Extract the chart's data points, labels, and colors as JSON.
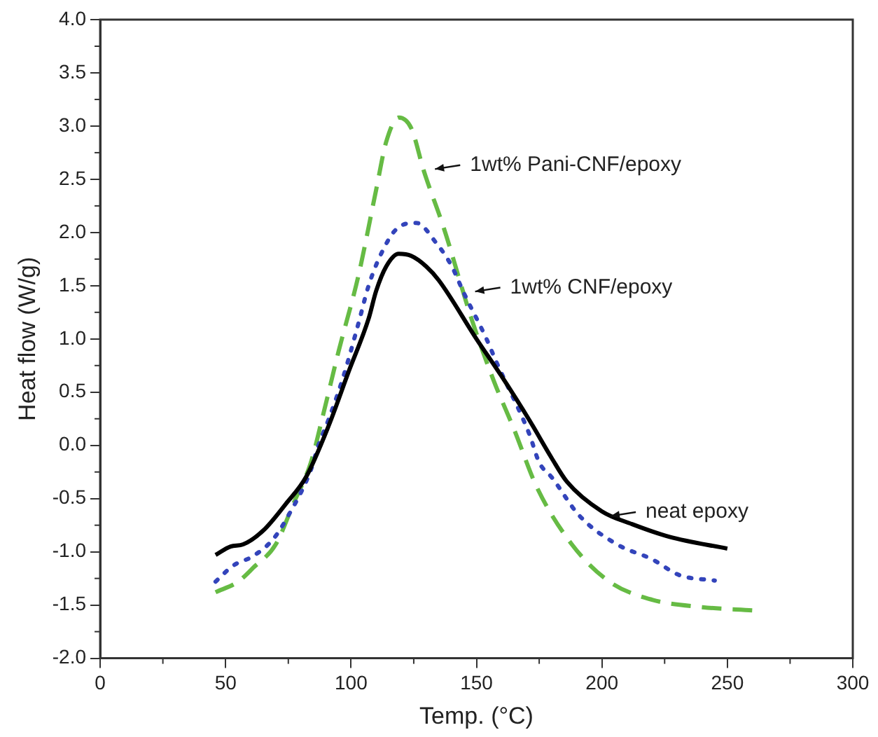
{
  "chart_data": {
    "type": "line",
    "xlabel": "Temp. (°C)",
    "ylabel": "Heat flow (W/g)",
    "xlim": [
      0,
      300
    ],
    "xticks": [
      0,
      50,
      100,
      150,
      200,
      250,
      300
    ],
    "ylim": [
      -2.0,
      4.0
    ],
    "yticks": [
      {
        "value": -2,
        "label": "-2.0"
      },
      {
        "value": -1.5,
        "label": "-1.5"
      },
      {
        "value": -1,
        "label": "-1.0"
      },
      {
        "value": -0.5,
        "label": "-0.5"
      },
      {
        "value": 0,
        "label": "0.0"
      },
      {
        "value": 0.5,
        "label": "0.5"
      },
      {
        "value": 1,
        "label": "1.0"
      },
      {
        "value": 1.5,
        "label": "1.5"
      },
      {
        "value": 2,
        "label": "2.0"
      },
      {
        "value": 2.5,
        "label": "2.5"
      },
      {
        "value": 3,
        "label": "3.0"
      },
      {
        "value": 3.5,
        "label": "3.5"
      },
      {
        "value": 4,
        "label": "4.0"
      }
    ],
    "grid": false,
    "legend": false,
    "marker": "none",
    "series": [
      {
        "color": "#000000",
        "line_style": "solid",
        "x": [
          46,
          52,
          57,
          65,
          74,
          82,
          91,
          99,
          107,
          110,
          114,
          119,
          124,
          130,
          135,
          150,
          160,
          171,
          180,
          186,
          200,
          212,
          227,
          250
        ],
        "values": [
          -1.03,
          -0.95,
          -0.93,
          -0.8,
          -0.55,
          -0.3,
          0.18,
          0.69,
          1.19,
          1.45,
          1.68,
          1.8,
          1.78,
          1.68,
          1.55,
          1.0,
          0.65,
          0.24,
          -0.12,
          -0.34,
          -0.62,
          -0.74,
          -0.86,
          -0.97
        ]
      },
      {
        "color": "#3344bb",
        "line_style": "dotted",
        "x": [
          46,
          53,
          61,
          69,
          75,
          84,
          87,
          91,
          97,
          103,
          107,
          112,
          118,
          126,
          134,
          140,
          145,
          154,
          158,
          171,
          175,
          180,
          191,
          206,
          220,
          231,
          245
        ],
        "values": [
          -1.28,
          -1.13,
          -1.04,
          -0.88,
          -0.66,
          -0.23,
          0.0,
          0.24,
          0.65,
          1.15,
          1.5,
          1.8,
          2.03,
          2.09,
          1.9,
          1.69,
          1.43,
          1.0,
          0.78,
          0.11,
          -0.16,
          -0.3,
          -0.66,
          -0.93,
          -1.07,
          -1.22,
          -1.27
        ]
      },
      {
        "color": "#66bb44",
        "line_style": "dashed",
        "x": [
          46,
          55,
          61,
          70,
          77,
          84,
          89,
          95,
          103,
          110,
          114,
          119,
          124,
          129,
          137,
          148,
          157,
          165,
          174,
          188,
          203,
          220,
          240,
          260
        ],
        "values": [
          -1.38,
          -1.28,
          -1.15,
          -0.93,
          -0.55,
          -0.16,
          0.3,
          0.88,
          1.6,
          2.4,
          2.85,
          3.08,
          2.98,
          2.58,
          2.04,
          1.19,
          0.6,
          0.15,
          -0.39,
          -0.93,
          -1.28,
          -1.45,
          -1.52,
          -1.55
        ]
      }
    ],
    "annotations": [
      {
        "text": "1wt% Pani-CNF/epoxy",
        "x": 129,
        "y": 2.58
      },
      {
        "text": "1wt% CNF/epoxy",
        "x": 145,
        "y": 1.43
      },
      {
        "text": "neat epoxy",
        "x": 199,
        "y": -0.68
      }
    ]
  }
}
